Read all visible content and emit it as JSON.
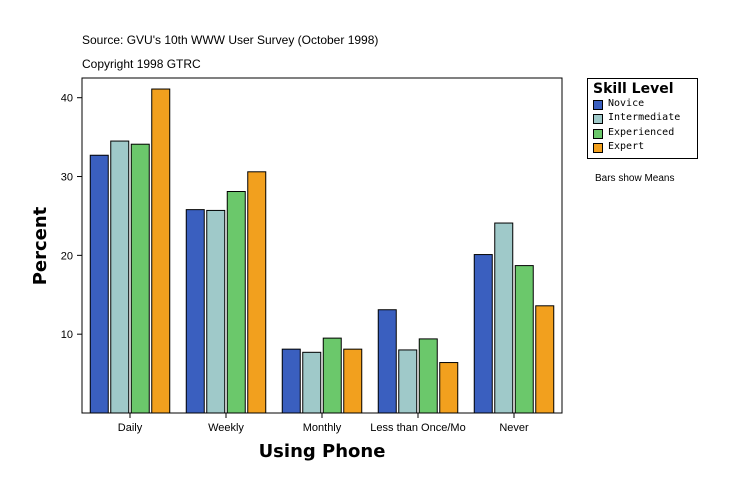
{
  "source_line": "Source: GVU's 10th WWW User Survey (October 1998)",
  "copyright_line": "Copyright 1998 GTRC",
  "legend": {
    "title": "Skill Level",
    "items": [
      {
        "label": "Novice",
        "color": "#3a5fbf"
      },
      {
        "label": "Intermediate",
        "color": "#9fc9c9"
      },
      {
        "label": "Experienced",
        "color": "#6bc86b"
      },
      {
        "label": "Expert",
        "color": "#f2a01e"
      }
    ]
  },
  "note": "Bars show Means",
  "chart_data": {
    "type": "bar",
    "xlabel": "Using Phone",
    "ylabel": "Percent",
    "categories": [
      "Daily",
      "Weekly",
      "Monthly",
      "Less than Once/Mo",
      "Never"
    ],
    "series": [
      {
        "name": "Novice",
        "color": "#3a5fbf",
        "values": [
          32.7,
          25.8,
          8.1,
          13.1,
          20.1
        ]
      },
      {
        "name": "Intermediate",
        "color": "#9fc9c9",
        "values": [
          34.5,
          25.7,
          7.7,
          8.0,
          24.1
        ]
      },
      {
        "name": "Experienced",
        "color": "#6bc86b",
        "values": [
          34.1,
          28.1,
          9.5,
          9.4,
          18.7
        ]
      },
      {
        "name": "Expert",
        "color": "#f2a01e",
        "values": [
          41.1,
          30.6,
          8.1,
          6.4,
          13.6
        ]
      }
    ],
    "yticks": [
      10,
      20,
      30,
      40
    ],
    "ylim": [
      0,
      42.5
    ]
  }
}
